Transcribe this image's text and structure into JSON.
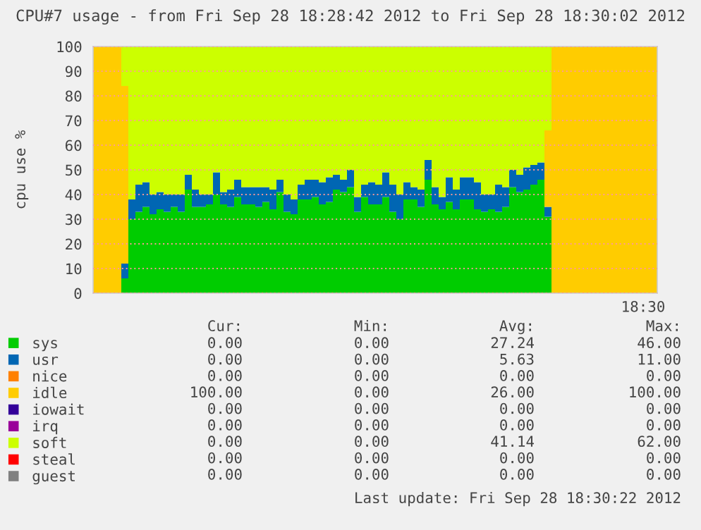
{
  "chart_data": {
    "type": "area",
    "stacked": true,
    "title": "CPU#7 usage - from Fri Sep 28 18:28:42 2012 to Fri Sep 28 18:30:02 2012",
    "ylabel": "cpu use %",
    "categories": [
      null,
      null,
      null,
      null,
      null,
      null,
      null,
      null,
      null,
      null,
      null,
      null,
      null,
      null,
      null,
      null,
      null,
      null,
      null,
      null,
      null,
      null,
      null,
      null,
      null,
      null,
      null,
      null,
      null,
      null,
      null,
      null,
      null,
      null,
      null,
      null,
      null,
      null,
      null,
      null,
      null,
      null,
      null,
      null,
      null,
      null,
      null,
      null,
      null,
      null,
      null,
      null,
      null,
      null,
      null,
      null,
      null,
      null,
      null,
      null,
      null,
      null,
      null,
      null,
      null,
      null,
      null,
      null,
      null,
      null,
      null,
      null,
      null,
      null,
      null,
      null,
      null,
      null,
      null,
      null
    ],
    "ylim": [
      0,
      100
    ],
    "yticks": [
      0,
      10,
      20,
      30,
      40,
      50,
      60,
      70,
      80,
      90,
      100
    ],
    "grid": "y",
    "legend": "bottom",
    "series": [
      {
        "name": "sys",
        "color": "#00cc00",
        "values": [
          0,
          0,
          0,
          0,
          6,
          30,
          33,
          35,
          32,
          34,
          33,
          35,
          33,
          42,
          35,
          35,
          36,
          40,
          36,
          35,
          39,
          36,
          36,
          35,
          37,
          34,
          41,
          33,
          32,
          38,
          38,
          39,
          36,
          37,
          42,
          41,
          43,
          33,
          39,
          36,
          36,
          39,
          33,
          30,
          38,
          38,
          35,
          46,
          36,
          34,
          37,
          34,
          38,
          38,
          34,
          33,
          34,
          33,
          35,
          43,
          41,
          42,
          44,
          46,
          31,
          0,
          0,
          0,
          0,
          0,
          0,
          0,
          0,
          0,
          0,
          0,
          0,
          0,
          0,
          0
        ]
      },
      {
        "name": "usr",
        "color": "#0066b3",
        "values": [
          0,
          0,
          0,
          0,
          6,
          8,
          11,
          10,
          8,
          7,
          7,
          5,
          7,
          6,
          7,
          5,
          4,
          9,
          5,
          7,
          7,
          7,
          7,
          8,
          6,
          8,
          5,
          7,
          6,
          6,
          8,
          7,
          9,
          10,
          6,
          5,
          7,
          6,
          5,
          9,
          8,
          10,
          11,
          10,
          7,
          5,
          7,
          8,
          7,
          5,
          10,
          8,
          9,
          9,
          11,
          7,
          6,
          11,
          8,
          7,
          7,
          9,
          8,
          7,
          4,
          0,
          0,
          0,
          0,
          0,
          0,
          0,
          0,
          0,
          0,
          0,
          0,
          0,
          0,
          0
        ]
      },
      {
        "name": "nice",
        "color": "#ff8000",
        "values": [
          null,
          null,
          null,
          null,
          null,
          null,
          null,
          null,
          null,
          null,
          null,
          null,
          null,
          null,
          null,
          null,
          null,
          null,
          null,
          null,
          null,
          null,
          null,
          null,
          null,
          null,
          null,
          null,
          null,
          null,
          null,
          null,
          null,
          null,
          null,
          null,
          null,
          null,
          null,
          null,
          null,
          null,
          null,
          null,
          null,
          null,
          null,
          null,
          null,
          null,
          null,
          null,
          null,
          null,
          null,
          null,
          null,
          null,
          null,
          null,
          null,
          null,
          null,
          null,
          null,
          null,
          null,
          null,
          null,
          null,
          null,
          null,
          null,
          null,
          null,
          null,
          null,
          null,
          null,
          null
        ]
      },
      {
        "name": "idle",
        "color": "#ffcc00",
        "values": [
          100,
          100,
          100,
          100,
          72,
          0,
          0,
          0,
          0,
          0,
          0,
          0,
          0,
          0,
          0,
          0,
          0,
          0,
          0,
          0,
          0,
          0,
          0,
          0,
          0,
          0,
          0,
          0,
          0,
          0,
          0,
          0,
          0,
          0,
          0,
          0,
          0,
          0,
          0,
          0,
          0,
          0,
          0,
          0,
          0,
          0,
          0,
          0,
          0,
          0,
          0,
          0,
          0,
          0,
          0,
          0,
          0,
          0,
          0,
          0,
          0,
          0,
          0,
          0,
          31,
          100,
          100,
          100,
          100,
          100,
          100,
          100,
          100,
          100,
          100,
          100,
          100,
          100,
          100,
          100
        ]
      },
      {
        "name": "iowait",
        "color": "#330099",
        "values": [
          null,
          null,
          null,
          null,
          null,
          null,
          null,
          null,
          null,
          null,
          null,
          null,
          null,
          null,
          null,
          null,
          null,
          null,
          null,
          null,
          null,
          null,
          null,
          null,
          null,
          null,
          null,
          null,
          null,
          null,
          null,
          null,
          null,
          null,
          null,
          null,
          null,
          null,
          null,
          null,
          null,
          null,
          null,
          null,
          null,
          null,
          null,
          null,
          null,
          null,
          null,
          null,
          null,
          null,
          null,
          null,
          null,
          null,
          null,
          null,
          null,
          null,
          null,
          null,
          null,
          null,
          null,
          null,
          null,
          null,
          null,
          null,
          null,
          null,
          null,
          null,
          null,
          null,
          null,
          null
        ]
      },
      {
        "name": "irq",
        "color": "#990099",
        "values": [
          null,
          null,
          null,
          null,
          null,
          null,
          null,
          null,
          null,
          null,
          null,
          null,
          null,
          null,
          null,
          null,
          null,
          null,
          null,
          null,
          null,
          null,
          null,
          null,
          null,
          null,
          null,
          null,
          null,
          null,
          null,
          null,
          null,
          null,
          null,
          null,
          null,
          null,
          null,
          null,
          null,
          null,
          null,
          null,
          null,
          null,
          null,
          null,
          null,
          null,
          null,
          null,
          null,
          null,
          null,
          null,
          null,
          null,
          null,
          null,
          null,
          null,
          null,
          null,
          null,
          null,
          null,
          null,
          null,
          null,
          null,
          null,
          null,
          null,
          null,
          null,
          null,
          null,
          null,
          null
        ]
      },
      {
        "name": "soft",
        "color": "#ccff00",
        "values": [
          0,
          0,
          0,
          0,
          16,
          62,
          56,
          55,
          60,
          59,
          60,
          60,
          60,
          52,
          58,
          60,
          60,
          51,
          59,
          58,
          54,
          57,
          57,
          57,
          57,
          58,
          54,
          60,
          62,
          56,
          54,
          54,
          55,
          53,
          52,
          54,
          50,
          61,
          56,
          55,
          56,
          51,
          56,
          60,
          55,
          57,
          58,
          46,
          57,
          61,
          53,
          58,
          53,
          53,
          55,
          60,
          60,
          56,
          57,
          50,
          52,
          49,
          48,
          47,
          34,
          0,
          0,
          0,
          0,
          0,
          0,
          0,
          0,
          0,
          0,
          0,
          0,
          0,
          0,
          0
        ]
      },
      {
        "name": "steal",
        "color": "#ff0000",
        "values": [
          null,
          null,
          null,
          null,
          null,
          null,
          null,
          null,
          null,
          null,
          null,
          null,
          null,
          null,
          null,
          null,
          null,
          null,
          null,
          null,
          null,
          null,
          null,
          null,
          null,
          null,
          null,
          null,
          null,
          null,
          null,
          null,
          null,
          null,
          null,
          null,
          null,
          null,
          null,
          null,
          null,
          null,
          null,
          null,
          null,
          null,
          null,
          null,
          null,
          null,
          null,
          null,
          null,
          null,
          null,
          null,
          null,
          null,
          null,
          null,
          null,
          null,
          null,
          null,
          null,
          null,
          null,
          null,
          null,
          null,
          null,
          null,
          null,
          null,
          null,
          null,
          null,
          null,
          null,
          null
        ]
      },
      {
        "name": "guest",
        "color": "#808080",
        "values": [
          null,
          null,
          null,
          null,
          null,
          null,
          null,
          null,
          null,
          null,
          null,
          null,
          null,
          null,
          null,
          null,
          null,
          null,
          null,
          null,
          null,
          null,
          null,
          null,
          null,
          null,
          null,
          null,
          null,
          null,
          null,
          null,
          null,
          null,
          null,
          null,
          null,
          null,
          null,
          null,
          null,
          null,
          null,
          null,
          null,
          null,
          null,
          null,
          null,
          null,
          null,
          null,
          null,
          null,
          null,
          null,
          null,
          null,
          null,
          null,
          null,
          null,
          null,
          null,
          null,
          null,
          null,
          null,
          null,
          null,
          null,
          null,
          null,
          null,
          null,
          null,
          null,
          null,
          null,
          null
        ]
      }
    ],
    "annotations": [
      "Cur:",
      "Min:",
      "Avg:",
      "Max:",
      "0.00",
      "0.00",
      "27.24",
      "46.00",
      "0.00",
      "0.00",
      "5.63",
      "11.00",
      "0.00",
      "0.00",
      "0.00",
      "0.00",
      "100.00",
      "0.00",
      "26.00",
      "100.00",
      "0.00",
      "0.00",
      "0.00",
      "0.00",
      "0.00",
      "0.00",
      "0.00",
      "0.00",
      "0.00",
      "0.00",
      "41.14",
      "62.00",
      "0.00",
      "0.00",
      "0.00",
      "0.00",
      "0.00",
      "0.00",
      "0.00",
      "0.00",
      "Last update: Fri Sep 28 18:30:22 2012",
      "18:30"
    ]
  }
}
